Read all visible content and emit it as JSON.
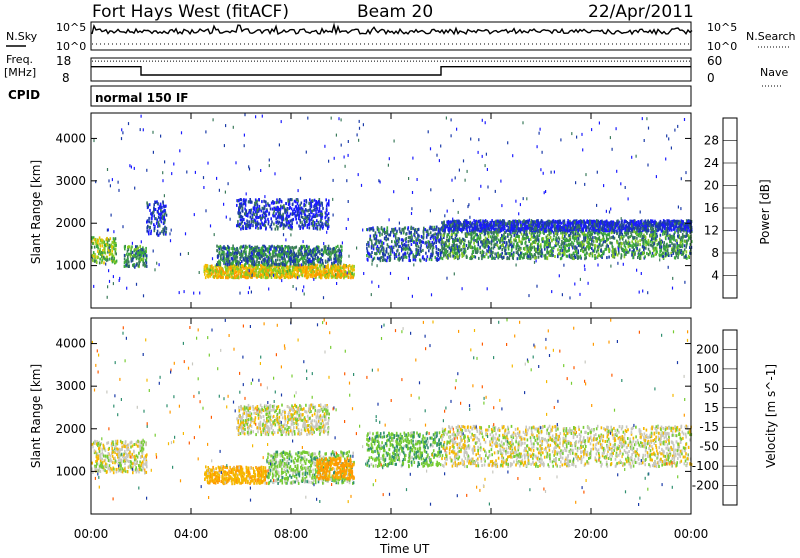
{
  "header": {
    "radar": "Fort Hays West (fitACF)",
    "beam": "Beam 20",
    "date": "22/Apr/2011"
  },
  "noise_panel": {
    "left_label": "N.Sky",
    "left_ticks": [
      "10^5",
      "10^0"
    ],
    "right_ticks": [
      "10^5",
      "10^0"
    ],
    "right_label": "N.Search"
  },
  "freq_panel": {
    "left_label_1": "Freq.",
    "left_label_2": "[MHz]",
    "left_ticks": [
      "18",
      "8"
    ],
    "right_ticks": [
      "60",
      "0"
    ],
    "right_label": "Nave",
    "freq_solid_segments_mhz": [
      {
        "from_h": 0.0,
        "to_h": 2.0,
        "mhz": 14.2
      },
      {
        "from_h": 2.0,
        "to_h": 14.0,
        "mhz": 10.6
      },
      {
        "from_h": 14.0,
        "to_h": 24.0,
        "mhz": 14.2
      }
    ],
    "nave_dotted": 52
  },
  "cpid_panel": {
    "label": "CPID",
    "value": "normal 150 IF"
  },
  "power_panel": {
    "ylabel": "Slant Range [km]",
    "y_ticks": [
      "1000",
      "2000",
      "3000",
      "4000"
    ],
    "colorbar_label": "Power [dB]",
    "colorbar_ticks": [
      "4",
      "8",
      "12",
      "16",
      "20",
      "24",
      "28"
    ],
    "colorbar_colors": [
      "#1a1aff",
      "#1a3aa8",
      "#3a7a5a",
      "#3aaa3a",
      "#88cc22",
      "#f0c000",
      "#ff9a00",
      "#ff5a00",
      "#ee0000"
    ]
  },
  "velocity_panel": {
    "ylabel": "Slant Range [km]",
    "y_ticks": [
      "1000",
      "2000",
      "3000",
      "4000"
    ],
    "colorbar_label": "Velocity [m s^-1]",
    "colorbar_ticks": [
      "-200",
      "-100",
      "-50",
      "-15",
      "15",
      "50",
      "100",
      "200"
    ],
    "colorbar_colors": [
      "#ee0000",
      "#ff5a00",
      "#ff9a00",
      "#f5b800",
      "#c8c8c0",
      "#c8c8c0",
      "#77cc33",
      "#2f8f6f",
      "#1a3aa8",
      "#1a1aff"
    ]
  },
  "x_axis": {
    "label": "Time UT",
    "ticks": [
      "00:00",
      "04:00",
      "08:00",
      "12:00",
      "16:00",
      "20:00",
      "00:00"
    ]
  },
  "chart_data": {
    "type": "heatmap",
    "title": "Fort Hays West (fitACF)  Beam 20  22/Apr/2011",
    "xlabel": "Time UT",
    "ylabel": "Slant Range [km]",
    "xlim_hours": [
      0,
      24
    ],
    "ylim_km": [
      0,
      4600
    ],
    "panels": [
      {
        "name": "Power",
        "unit": "dB",
        "colorbar_range": [
          0,
          30
        ],
        "regions": [
          {
            "t0": 0.0,
            "t1": 1.0,
            "r0": 1050,
            "r1": 1650,
            "value": 14
          },
          {
            "t0": 1.3,
            "t1": 2.2,
            "r0": 950,
            "r1": 1450,
            "value": 10
          },
          {
            "t0": 2.2,
            "t1": 3.0,
            "r0": 1700,
            "r1": 2500,
            "value": 4
          },
          {
            "t0": 4.5,
            "t1": 10.5,
            "r0": 700,
            "r1": 1000,
            "value": 18
          },
          {
            "t0": 5.0,
            "t1": 10.0,
            "r0": 1000,
            "r1": 1450,
            "value": 8
          },
          {
            "t0": 5.8,
            "t1": 9.5,
            "r0": 1850,
            "r1": 2550,
            "value": 4
          },
          {
            "t0": 11.0,
            "t1": 14.0,
            "r0": 1100,
            "r1": 1900,
            "value": 6
          },
          {
            "t0": 14.0,
            "t1": 24.0,
            "r0": 1150,
            "r1": 1800,
            "value": 10
          },
          {
            "t0": 14.0,
            "t1": 24.0,
            "r0": 1800,
            "r1": 2050,
            "value": 4
          }
        ]
      },
      {
        "name": "Velocity",
        "unit": "m s^-1",
        "colorbar_range": [
          -250,
          250
        ],
        "regions": [
          {
            "t0": 0.0,
            "t1": 2.2,
            "r0": 950,
            "r1": 1700,
            "value": 0
          },
          {
            "t0": 4.5,
            "t1": 7.0,
            "r0": 700,
            "r1": 1100,
            "value": -40
          },
          {
            "t0": 7.0,
            "t1": 10.5,
            "r0": 700,
            "r1": 1450,
            "value": 30
          },
          {
            "t0": 9.0,
            "t1": 10.5,
            "r0": 800,
            "r1": 1300,
            "value": -70
          },
          {
            "t0": 5.8,
            "t1": 9.5,
            "r0": 1850,
            "r1": 2550,
            "value": 0
          },
          {
            "t0": 11.0,
            "t1": 14.0,
            "r0": 1100,
            "r1": 1900,
            "value": 40
          },
          {
            "t0": 14.0,
            "t1": 24.0,
            "r0": 1100,
            "r1": 2050,
            "value": 0
          }
        ]
      }
    ]
  }
}
